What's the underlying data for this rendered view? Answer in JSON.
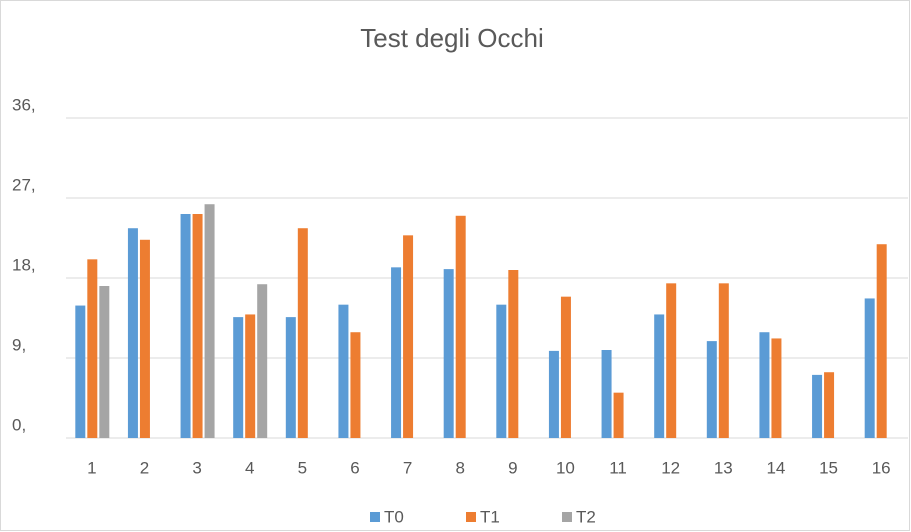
{
  "chart_data": {
    "type": "bar",
    "title": "Test degli Occhi",
    "categories": [
      "1",
      "2",
      "3",
      "4",
      "5",
      "6",
      "7",
      "8",
      "9",
      "10",
      "11",
      "12",
      "13",
      "14",
      "15",
      "16"
    ],
    "series": [
      {
        "name": "T0",
        "color": "#5b9bd5",
        "values": [
          14.9,
          23.6,
          25.2,
          13.6,
          13.6,
          15.0,
          19.2,
          19.0,
          15.0,
          9.8,
          9.9,
          13.9,
          10.9,
          11.9,
          7.1,
          15.7
        ]
      },
      {
        "name": "T1",
        "color": "#ed7d31",
        "values": [
          20.1,
          22.3,
          25.2,
          13.9,
          23.6,
          11.9,
          22.8,
          25.0,
          18.9,
          15.9,
          5.1,
          17.4,
          17.4,
          11.2,
          7.4,
          21.8
        ]
      },
      {
        "name": "T2",
        "color": "#a5a5a5",
        "values": [
          17.1,
          null,
          26.3,
          17.3,
          null,
          null,
          null,
          null,
          null,
          null,
          null,
          null,
          null,
          null,
          null,
          null
        ]
      }
    ],
    "ylim": [
      0,
      36
    ],
    "yticks": [
      {
        "value": 0,
        "label": "0,"
      },
      {
        "value": 9,
        "label": "9,"
      },
      {
        "value": 18,
        "label": "18,"
      },
      {
        "value": 27,
        "label": "27,"
      },
      {
        "value": 36,
        "label": "36,"
      }
    ],
    "grid": true,
    "legend": "bottom"
  }
}
